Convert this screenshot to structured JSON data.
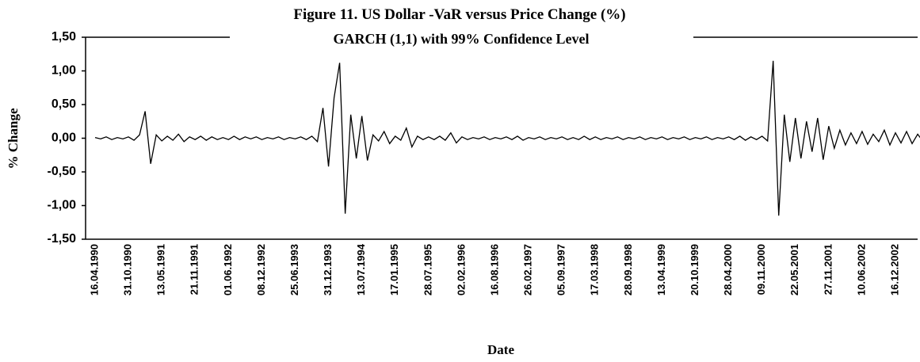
{
  "chart_data": {
    "type": "line",
    "title": "Figure 11. US Dollar -VaR versus Price Change (%)",
    "subtitle": "GARCH (1,1) with 99% Confidence Level",
    "x_label": "Date",
    "y_label": "% Change",
    "ylim": [
      -1.5,
      1.5
    ],
    "yticks": [
      {
        "value": 1.5,
        "label": "1,50"
      },
      {
        "value": 1.0,
        "label": "1,00"
      },
      {
        "value": 0.5,
        "label": "0,50"
      },
      {
        "value": 0,
        "label": "0,00"
      },
      {
        "value": -0.5,
        "label": "-0,50"
      },
      {
        "value": -1.0,
        "label": "-1,00"
      },
      {
        "value": -1.5,
        "label": "-1,50"
      }
    ],
    "grid": false,
    "categories": [
      "16.04.1990",
      null,
      null,
      null,
      null,
      null,
      "31.10.1990",
      null,
      null,
      null,
      null,
      null,
      "13.05.1991",
      null,
      null,
      null,
      null,
      null,
      "21.11.1991",
      null,
      null,
      null,
      null,
      null,
      "01.06.1992",
      null,
      null,
      null,
      null,
      null,
      "08.12.1992",
      null,
      null,
      null,
      null,
      null,
      "25.06.1993",
      null,
      null,
      null,
      null,
      null,
      "31.12.1993",
      null,
      null,
      null,
      null,
      null,
      "13.07.1994",
      null,
      null,
      null,
      null,
      null,
      "17.01.1995",
      null,
      null,
      null,
      null,
      null,
      "28.07.1995",
      null,
      null,
      null,
      null,
      null,
      "02.02.1996",
      null,
      null,
      null,
      null,
      null,
      "16.08.1996",
      null,
      null,
      null,
      null,
      null,
      "26.02.1997",
      null,
      null,
      null,
      null,
      null,
      "05.09.1997",
      null,
      null,
      null,
      null,
      null,
      "17.03.1998",
      null,
      null,
      null,
      null,
      null,
      "28.09.1998",
      null,
      null,
      null,
      null,
      null,
      "13.04.1999",
      null,
      null,
      null,
      null,
      null,
      "20.10.1999",
      null,
      null,
      null,
      null,
      null,
      "28.04.2000",
      null,
      null,
      null,
      null,
      null,
      "09.11.2000",
      null,
      null,
      null,
      null,
      null,
      "22.05.2001",
      null,
      null,
      null,
      null,
      null,
      "27.11.2001",
      null,
      null,
      null,
      null,
      null,
      "10.06.2002",
      null,
      null,
      null,
      null,
      null,
      "16.12.2002",
      null,
      null,
      null,
      null,
      null
    ],
    "series": [
      {
        "color": "#000000",
        "values": [
          0.01,
          -0.01,
          0.02,
          -0.02,
          0.01,
          -0.01,
          0.02,
          -0.03,
          0.05,
          0.4,
          -0.38,
          0.05,
          -0.04,
          0.03,
          -0.03,
          0.06,
          -0.05,
          0.02,
          -0.02,
          0.03,
          -0.03,
          0.02,
          -0.02,
          0.01,
          -0.02,
          0.03,
          -0.02,
          0.02,
          -0.01,
          0.02,
          -0.02,
          0.01,
          -0.01,
          0.02,
          -0.02,
          0.01,
          -0.01,
          0.02,
          -0.02,
          0.03,
          -0.05,
          0.45,
          -0.42,
          0.6,
          1.12,
          -1.12,
          0.35,
          -0.3,
          0.33,
          -0.33,
          0.05,
          -0.04,
          0.1,
          -0.08,
          0.03,
          -0.03,
          0.15,
          -0.13,
          0.03,
          -0.02,
          0.02,
          -0.02,
          0.03,
          -0.03,
          0.08,
          -0.07,
          0.02,
          -0.02,
          0.01,
          -0.01,
          0.02,
          -0.02,
          0.01,
          -0.01,
          0.02,
          -0.02,
          0.03,
          -0.03,
          0.01,
          -0.01,
          0.02,
          -0.02,
          0.01,
          -0.01,
          0.02,
          -0.02,
          0.01,
          -0.02,
          0.03,
          -0.02,
          0.02,
          -0.02,
          0.01,
          -0.01,
          0.02,
          -0.02,
          0.01,
          -0.01,
          0.02,
          -0.02,
          0.01,
          -0.01,
          0.02,
          -0.02,
          0.01,
          -0.01,
          0.02,
          -0.02,
          0.01,
          -0.01,
          0.02,
          -0.02,
          0.01,
          -0.01,
          0.02,
          -0.02,
          0.03,
          -0.03,
          0.02,
          -0.02,
          0.03,
          -0.04,
          1.15,
          -1.15,
          0.35,
          -0.35,
          0.3,
          -0.3,
          0.25,
          -0.2,
          0.3,
          -0.32,
          0.18,
          -0.15,
          0.12,
          -0.1,
          0.08,
          -0.08,
          0.1,
          -0.09,
          0.06,
          -0.05,
          0.12,
          -0.1,
          0.08,
          -0.07,
          0.1,
          -0.08,
          0.06,
          -0.05
        ]
      }
    ]
  }
}
